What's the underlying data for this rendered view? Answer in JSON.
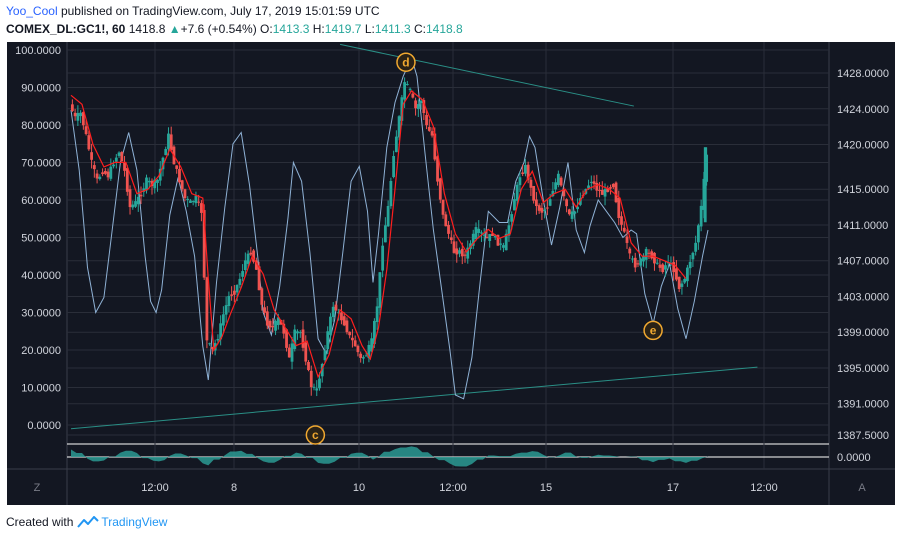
{
  "header": {
    "author": "Yoo_Cool",
    "published": "published on TradingView.com, July 17, 2019 15:01:59 UTC",
    "symbol": "COMEX_DL:GC1!, 60",
    "last": "1418.8",
    "change_arrow": "▲",
    "change": "+7.6 (+0.54%)",
    "o_label": "O:",
    "o_value": "1413.3",
    "h_label": "H:",
    "h_value": "1419.7",
    "l_label": "L:",
    "l_value": "1411.3",
    "c_label": "C:",
    "c_value": "1418.8"
  },
  "footer": {
    "created_with": "Created with",
    "brand": "TradingView"
  },
  "colors": {
    "background": "#131722",
    "candle_up": "#26a69a",
    "candle_down": "#ef5350",
    "osc_line": "#8fb2d6",
    "trend_line": "#2a8f86",
    "ma_line": "#ff1e1e",
    "label_circle": "#f0a830",
    "histogram": "#2b9a93"
  },
  "chart_data": {
    "type": "candlestick",
    "left_axis": {
      "ticks": [
        "100.0000",
        "90.0000",
        "80.0000",
        "70.0000",
        "60.0000",
        "50.0000",
        "40.0000",
        "30.0000",
        "20.0000",
        "10.0000",
        "0.0000"
      ],
      "range": [
        0,
        100
      ]
    },
    "right_axis": {
      "ticks": [
        "1428.0000",
        "1424.0000",
        "1420.0000",
        "1415.0000",
        "1411.0000",
        "1407.0000",
        "1403.0000",
        "1399.0000",
        "1395.0000",
        "1391.0000",
        "1387.5000"
      ],
      "range": [
        1387.5,
        1428.0
      ]
    },
    "x_ticks": [
      "12:00",
      "8",
      "12:00",
      "10",
      "12:00",
      "15",
      "12:00",
      "17",
      "12:00"
    ],
    "indicator_axis": {
      "ticks": [
        "0.0000"
      ]
    },
    "annotations": [
      {
        "text": "d",
        "x": "Jul 11 ~04:00",
        "price": 1429.2
      },
      {
        "text": "c",
        "x": "Jul 9 ~14:00",
        "price": 1387.5
      },
      {
        "text": "e",
        "x": "Jul 17 ~06:00",
        "price": 1399.2
      }
    ],
    "last_price": 1418.8,
    "price_path": [
      [
        0,
        1424.5
      ],
      [
        4,
        1423
      ],
      [
        8,
        1423.5
      ],
      [
        12,
        1421
      ],
      [
        16,
        1418
      ],
      [
        20,
        1416
      ],
      [
        24,
        1417
      ],
      [
        28,
        1416.5
      ],
      [
        32,
        1418
      ],
      [
        36,
        1419.2
      ],
      [
        40,
        1417
      ],
      [
        44,
        1413
      ],
      [
        48,
        1413.5
      ],
      [
        52,
        1414.5
      ],
      [
        56,
        1416
      ],
      [
        60,
        1415.5
      ],
      [
        64,
        1416
      ],
      [
        68,
        1418.5
      ],
      [
        72,
        1421
      ],
      [
        76,
        1418
      ],
      [
        80,
        1416
      ],
      [
        84,
        1414
      ],
      [
        88,
        1413.5
      ],
      [
        92,
        1414
      ],
      [
        96,
        1412.5
      ],
      [
        100,
        1398
      ],
      [
        104,
        1397
      ],
      [
        108,
        1398.5
      ],
      [
        112,
        1401
      ],
      [
        116,
        1403
      ],
      [
        120,
        1403.5
      ],
      [
        124,
        1405
      ],
      [
        128,
        1407
      ],
      [
        132,
        1408
      ],
      [
        136,
        1406
      ],
      [
        140,
        1402
      ],
      [
        144,
        1400
      ],
      [
        148,
        1399.5
      ],
      [
        152,
        1400.5
      ],
      [
        156,
        1399
      ],
      [
        160,
        1396
      ],
      [
        164,
        1399
      ],
      [
        168,
        1399
      ],
      [
        172,
        1396
      ],
      [
        176,
        1393
      ],
      [
        180,
        1392.5
      ],
      [
        184,
        1395.5
      ],
      [
        188,
        1399
      ],
      [
        192,
        1402
      ],
      [
        196,
        1401
      ],
      [
        200,
        1400
      ],
      [
        204,
        1398.5
      ],
      [
        208,
        1397.5
      ],
      [
        212,
        1396
      ],
      [
        216,
        1396.5
      ],
      [
        220,
        1398
      ],
      [
        224,
        1402
      ],
      [
        228,
        1409
      ],
      [
        232,
        1413
      ],
      [
        236,
        1419
      ],
      [
        240,
        1423
      ],
      [
        244,
        1427
      ],
      [
        248,
        1426
      ],
      [
        252,
        1424
      ],
      [
        256,
        1425
      ],
      [
        260,
        1422
      ],
      [
        264,
        1421
      ],
      [
        268,
        1416
      ],
      [
        272,
        1412
      ],
      [
        276,
        1410
      ],
      [
        280,
        1408
      ],
      [
        284,
        1408
      ],
      [
        288,
        1407.5
      ],
      [
        292,
        1409
      ],
      [
        296,
        1410.5
      ],
      [
        300,
        1410
      ],
      [
        304,
        1409.5
      ],
      [
        308,
        1410
      ],
      [
        312,
        1409
      ],
      [
        316,
        1408.5
      ],
      [
        320,
        1411
      ],
      [
        324,
        1414
      ],
      [
        328,
        1416.5
      ],
      [
        332,
        1417.5
      ],
      [
        336,
        1415
      ],
      [
        340,
        1413
      ],
      [
        344,
        1412.5
      ],
      [
        348,
        1413
      ],
      [
        352,
        1415
      ],
      [
        356,
        1416.5
      ],
      [
        360,
        1414
      ],
      [
        364,
        1412
      ],
      [
        368,
        1412.5
      ],
      [
        372,
        1414
      ],
      [
        376,
        1415
      ],
      [
        380,
        1416
      ],
      [
        384,
        1415
      ],
      [
        388,
        1414.5
      ],
      [
        392,
        1415
      ],
      [
        396,
        1415.5
      ],
      [
        400,
        1412
      ],
      [
        404,
        1410
      ],
      [
        408,
        1407.5
      ],
      [
        412,
        1406.5
      ],
      [
        416,
        1407
      ],
      [
        420,
        1408
      ],
      [
        424,
        1407.5
      ],
      [
        428,
        1406.5
      ],
      [
        432,
        1406
      ],
      [
        436,
        1407
      ],
      [
        440,
        1406
      ],
      [
        444,
        1404
      ],
      [
        448,
        1405
      ],
      [
        452,
        1407
      ],
      [
        456,
        1409
      ],
      [
        460,
        1413
      ],
      [
        464,
        1418.8
      ]
    ],
    "ma_path": [
      [
        0,
        1425.5
      ],
      [
        8,
        1424.5
      ],
      [
        16,
        1420
      ],
      [
        24,
        1417.5
      ],
      [
        32,
        1418
      ],
      [
        40,
        1418
      ],
      [
        48,
        1414.5
      ],
      [
        56,
        1415
      ],
      [
        64,
        1416.5
      ],
      [
        72,
        1419.5
      ],
      [
        80,
        1417.5
      ],
      [
        88,
        1414.5
      ],
      [
        96,
        1414
      ],
      [
        100,
        1405
      ],
      [
        104,
        1397
      ],
      [
        110,
        1398.5
      ],
      [
        116,
        1401
      ],
      [
        124,
        1404
      ],
      [
        132,
        1407.5
      ],
      [
        140,
        1405.5
      ],
      [
        148,
        1401.5
      ],
      [
        156,
        1399.5
      ],
      [
        164,
        1397.5
      ],
      [
        172,
        1398
      ],
      [
        180,
        1394
      ],
      [
        188,
        1396.5
      ],
      [
        196,
        1401.5
      ],
      [
        204,
        1400.5
      ],
      [
        212,
        1397.5
      ],
      [
        218,
        1396
      ],
      [
        224,
        1399.5
      ],
      [
        230,
        1406
      ],
      [
        236,
        1415
      ],
      [
        242,
        1424.5
      ],
      [
        248,
        1426
      ],
      [
        256,
        1425
      ],
      [
        264,
        1422
      ],
      [
        272,
        1414.5
      ],
      [
        280,
        1410
      ],
      [
        288,
        1408
      ],
      [
        296,
        1409.5
      ],
      [
        304,
        1410.5
      ],
      [
        312,
        1409.5
      ],
      [
        320,
        1410
      ],
      [
        328,
        1415
      ],
      [
        336,
        1417
      ],
      [
        344,
        1413.5
      ],
      [
        352,
        1414.5
      ],
      [
        360,
        1415
      ],
      [
        368,
        1413
      ],
      [
        376,
        1415
      ],
      [
        384,
        1415.5
      ],
      [
        392,
        1415
      ],
      [
        400,
        1414
      ],
      [
        408,
        1409
      ],
      [
        416,
        1407.5
      ],
      [
        424,
        1407.5
      ],
      [
        432,
        1407
      ],
      [
        440,
        1406.5
      ],
      [
        448,
        1405
      ]
    ],
    "oscillator_path": [
      [
        0,
        84
      ],
      [
        6,
        68
      ],
      [
        12,
        42
      ],
      [
        18,
        30
      ],
      [
        24,
        34
      ],
      [
        30,
        52
      ],
      [
        36,
        70
      ],
      [
        42,
        78
      ],
      [
        48,
        68
      ],
      [
        54,
        45
      ],
      [
        58,
        33
      ],
      [
        62,
        30
      ],
      [
        66,
        36
      ],
      [
        72,
        56
      ],
      [
        78,
        66
      ],
      [
        84,
        57
      ],
      [
        90,
        45
      ],
      [
        96,
        21
      ],
      [
        100,
        12
      ],
      [
        106,
        38
      ],
      [
        112,
        58
      ],
      [
        118,
        75
      ],
      [
        124,
        78
      ],
      [
        130,
        64
      ],
      [
        136,
        45
      ],
      [
        140,
        30
      ],
      [
        146,
        24
      ],
      [
        152,
        37
      ],
      [
        158,
        55
      ],
      [
        162,
        70
      ],
      [
        168,
        65
      ],
      [
        174,
        46
      ],
      [
        180,
        23
      ],
      [
        186,
        19
      ],
      [
        192,
        28
      ],
      [
        198,
        46
      ],
      [
        204,
        65
      ],
      [
        210,
        69
      ],
      [
        216,
        57
      ],
      [
        220,
        38
      ],
      [
        224,
        51
      ],
      [
        230,
        74
      ],
      [
        236,
        86
      ],
      [
        242,
        93
      ],
      [
        248,
        98
      ],
      [
        252,
        93
      ],
      [
        258,
        72
      ],
      [
        264,
        52
      ],
      [
        270,
        36
      ],
      [
        276,
        20
      ],
      [
        280,
        8
      ],
      [
        286,
        7
      ],
      [
        292,
        18
      ],
      [
        298,
        38
      ],
      [
        304,
        57
      ],
      [
        312,
        54
      ],
      [
        318,
        54
      ],
      [
        324,
        65
      ],
      [
        330,
        70
      ],
      [
        334,
        77
      ],
      [
        338,
        74
      ],
      [
        344,
        60
      ],
      [
        350,
        48
      ],
      [
        356,
        58
      ],
      [
        362,
        70
      ],
      [
        368,
        52
      ],
      [
        374,
        46
      ],
      [
        378,
        53
      ],
      [
        384,
        60
      ],
      [
        390,
        57
      ],
      [
        396,
        54
      ],
      [
        402,
        50
      ],
      [
        408,
        52
      ],
      [
        412,
        51
      ],
      [
        418,
        35
      ],
      [
        424,
        27
      ],
      [
        430,
        37
      ],
      [
        436,
        43
      ],
      [
        442,
        31
      ],
      [
        448,
        23
      ],
      [
        454,
        33
      ],
      [
        460,
        45
      ],
      [
        464,
        52
      ]
    ]
  }
}
